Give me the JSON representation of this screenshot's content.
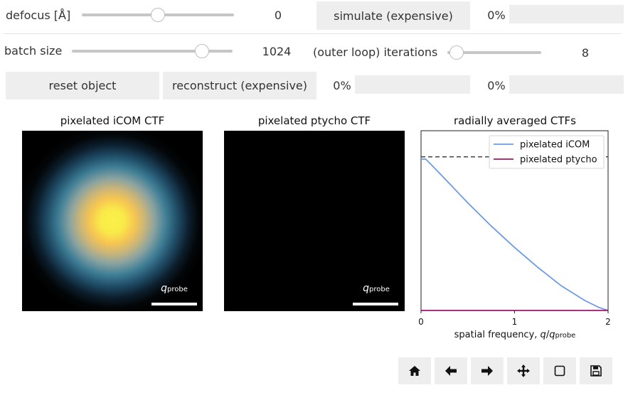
{
  "controls": {
    "defocus": {
      "label": "defocus [Å]",
      "value": "0",
      "fraction": 0.5
    },
    "simulate_label": "simulate (expensive)",
    "simulate_progress": "0%",
    "batch_size": {
      "label": "batch size",
      "value": "1024",
      "fraction": 0.81
    },
    "iterations": {
      "label": "(outer loop) iterations",
      "value": "8",
      "fraction": 0.1
    },
    "reset_label": "reset object",
    "reconstruct_label": "reconstruct (expensive)",
    "reconstruct_progress": "0%",
    "reset_progress": "0%"
  },
  "panels": {
    "icom_title": "pixelated iCOM CTF",
    "ptycho_title": "pixelated ptycho CTF",
    "scalebar_label": "q",
    "scalebar_sub": "probe"
  },
  "chart_data": {
    "type": "line",
    "title": "radially averaged CTFs",
    "xlabel_main": "spatial frequency, ",
    "xlabel_q": "q",
    "xlabel_slash": "/",
    "xlabel_q2": "q",
    "xlabel_sub": "probe",
    "xlim": [
      0,
      2
    ],
    "ylim": [
      0,
      1.17
    ],
    "xticks": [
      "0",
      "1",
      "2"
    ],
    "reference_line_y": 1.0,
    "series": [
      {
        "name": "pixelated iCOM",
        "color": "#6b9be8",
        "x": [
          0,
          0.05,
          0.1,
          0.25,
          0.5,
          0.75,
          1.0,
          1.25,
          1.5,
          1.75,
          1.9,
          2.0
        ],
        "y": [
          0.985,
          0.985,
          0.955,
          0.86,
          0.7,
          0.55,
          0.41,
          0.28,
          0.16,
          0.065,
          0.02,
          0.0
        ]
      },
      {
        "name": "pixelated ptycho",
        "color": "#a0146e",
        "x": [
          0,
          2.0
        ],
        "y": [
          0.0,
          0.0
        ]
      }
    ]
  }
}
